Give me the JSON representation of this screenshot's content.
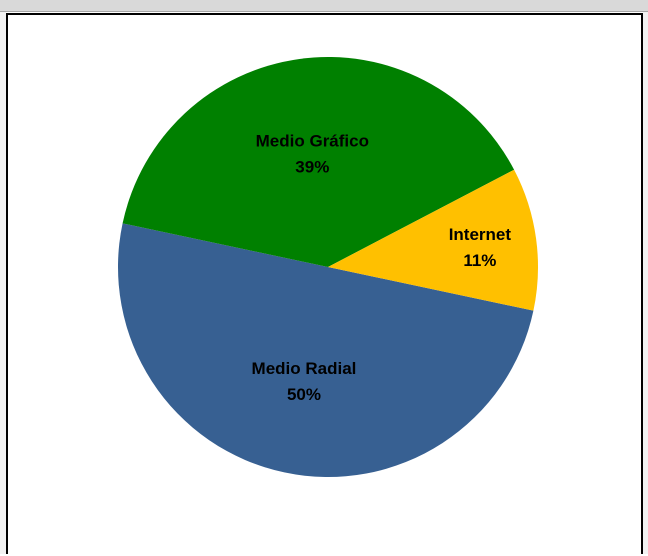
{
  "chart_data": {
    "type": "pie",
    "title": "",
    "slices": [
      {
        "name": "Medio Radial",
        "value": 50,
        "percent_label": "50%",
        "color": "#376092"
      },
      {
        "name": "Medio Gráfico",
        "value": 39,
        "percent_label": "39%",
        "color": "#008000"
      },
      {
        "name": "Internet",
        "value": 11,
        "percent_label": "11%",
        "color": "#ffc000"
      }
    ],
    "legend": "none",
    "data_labels": "inside"
  }
}
